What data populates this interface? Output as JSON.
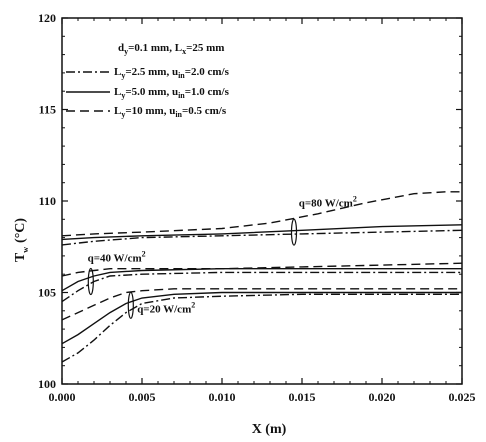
{
  "chart_data": {
    "type": "line",
    "xlabel": "X (m)",
    "ylabel": "T",
    "ylabel_sub": "w",
    "ylabel_unit": "(°C)",
    "xlim": [
      0.0,
      0.025
    ],
    "ylim": [
      100,
      120
    ],
    "xticks": [
      "0.000",
      "0.005",
      "0.010",
      "0.015",
      "0.020",
      "0.025"
    ],
    "yticks": [
      "100",
      "105",
      "110",
      "115",
      "120"
    ],
    "grid": false,
    "legend_position": "top-left",
    "legend_header": {
      "d": "d",
      "d_sub": "y",
      "d_val": "=0.1 mm, L",
      "l_sub": "x",
      "l_val": "=25 mm"
    },
    "series": [
      {
        "name": "Ly=2.5 mm, uin=2.0 cm/s",
        "L_sub": "y",
        "L_val": "=2.5 mm, u",
        "u_sub": "in",
        "u_val": "=2.0 cm/s",
        "style": "dash-dot",
        "groups": [
          {
            "x": [
              0.0,
              0.001,
              0.002,
              0.003,
              0.004,
              0.005,
              0.007,
              0.01,
              0.015,
              0.02,
              0.025
            ],
            "y": [
              101.2,
              101.7,
              102.4,
              103.2,
              103.9,
              104.4,
              104.7,
              104.8,
              104.9,
              104.9,
              104.9
            ]
          },
          {
            "x": [
              0.0,
              0.001,
              0.002,
              0.003,
              0.005,
              0.01,
              0.015,
              0.02,
              0.025
            ],
            "y": [
              104.5,
              105.1,
              105.6,
              105.9,
              106.0,
              106.1,
              106.1,
              106.1,
              106.1
            ]
          },
          {
            "x": [
              0.0,
              0.002,
              0.005,
              0.01,
              0.015,
              0.02,
              0.025
            ],
            "y": [
              107.6,
              107.8,
              108.0,
              108.1,
              108.2,
              108.3,
              108.4
            ]
          }
        ]
      },
      {
        "name": "Ly=5.0 mm, uin=1.0 cm/s",
        "L_sub": "y",
        "L_val": "=5.0 mm, u",
        "u_sub": "in",
        "u_val": "=1.0 cm/s",
        "style": "solid",
        "groups": [
          {
            "x": [
              0.0,
              0.001,
              0.002,
              0.003,
              0.004,
              0.005,
              0.007,
              0.01,
              0.015,
              0.02,
              0.025
            ],
            "y": [
              102.2,
              102.7,
              103.3,
              103.9,
              104.4,
              104.7,
              104.9,
              105.0,
              105.0,
              105.0,
              105.0
            ]
          },
          {
            "x": [
              0.0,
              0.001,
              0.002,
              0.003,
              0.005,
              0.01,
              0.015,
              0.02,
              0.025
            ],
            "y": [
              105.1,
              105.6,
              105.9,
              106.1,
              106.2,
              106.3,
              106.3,
              106.3,
              106.3
            ]
          },
          {
            "x": [
              0.0,
              0.002,
              0.005,
              0.01,
              0.015,
              0.02,
              0.025
            ],
            "y": [
              107.9,
              108.0,
              108.1,
              108.2,
              108.4,
              108.6,
              108.7
            ]
          }
        ]
      },
      {
        "name": "Ly=10 mm, uin=0.5 cm/s",
        "L_sub": "y",
        "L_val": "=10 mm, u",
        "u_sub": "in",
        "u_val": "=0.5 cm/s",
        "style": "dashed",
        "groups": [
          {
            "x": [
              0.0,
              0.001,
              0.002,
              0.003,
              0.004,
              0.005,
              0.007,
              0.01,
              0.015,
              0.02,
              0.025
            ],
            "y": [
              103.5,
              103.9,
              104.3,
              104.7,
              105.0,
              105.1,
              105.2,
              105.2,
              105.2,
              105.2,
              105.2
            ]
          },
          {
            "x": [
              0.0,
              0.001,
              0.002,
              0.003,
              0.005,
              0.01,
              0.015,
              0.02,
              0.025
            ],
            "y": [
              105.9,
              106.1,
              106.2,
              106.3,
              106.3,
              106.3,
              106.4,
              106.5,
              106.6
            ]
          },
          {
            "x": [
              0.0,
              0.002,
              0.005,
              0.01,
              0.013,
              0.016,
              0.019,
              0.022,
              0.024,
              0.025
            ],
            "y": [
              108.1,
              108.2,
              108.3,
              108.5,
              108.8,
              109.3,
              109.9,
              110.4,
              110.5,
              110.5
            ]
          }
        ]
      }
    ],
    "annotations": [
      {
        "q_label": "q=80 W/cm",
        "sup": "2",
        "x": 0.0148,
        "y": 109.7,
        "marker_x": 0.0145,
        "marker_y": 108.3
      },
      {
        "q_label": "q=40 W/cm",
        "sup": "2",
        "x": 0.0016,
        "y": 106.7,
        "marker_x": 0.0018,
        "marker_y": 105.6
      },
      {
        "q_label": "q=20 W/cm",
        "sup": "2",
        "x": 0.0047,
        "y": 103.9,
        "marker_x": 0.0043,
        "marker_y": 104.3
      }
    ]
  }
}
